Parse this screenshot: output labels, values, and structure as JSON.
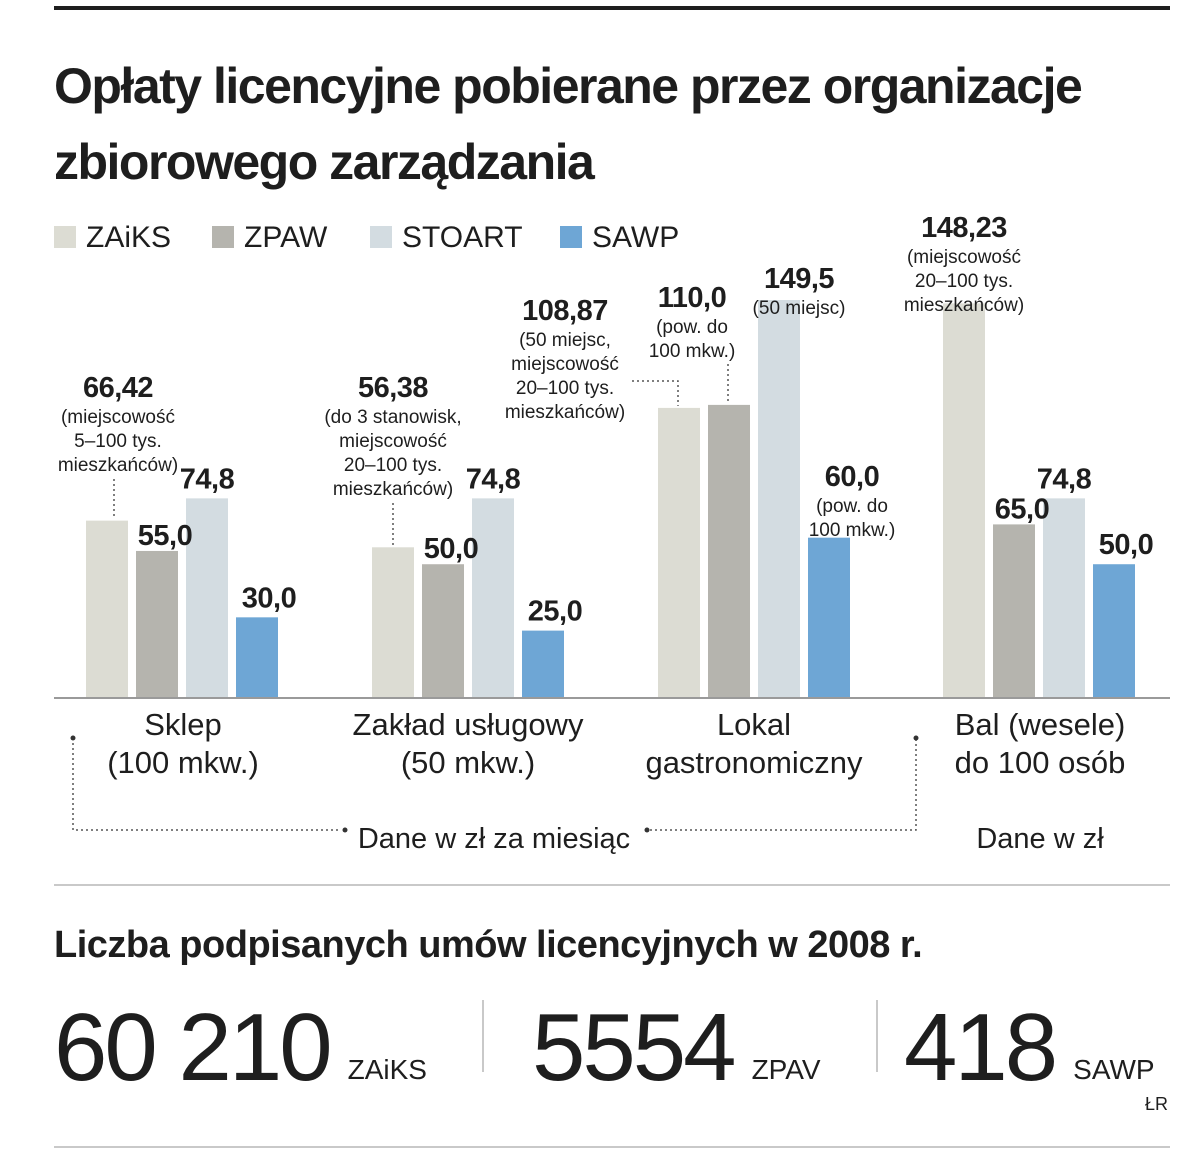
{
  "title_lines": [
    "Opłaty licencyjne pobierane przez organizacje",
    "zbiorowego zarządzania"
  ],
  "colors": {
    "ZAiKS": "#dcdcd3",
    "ZPAW": "#b5b4ae",
    "STOART": "#d3dce1",
    "SAWP": "#6ea6d5",
    "text": "#1e1e1e",
    "rule": "#c9c9c9"
  },
  "chart_data": {
    "type": "bar",
    "series_names": [
      "ZAiKS",
      "ZPAW",
      "STOART",
      "SAWP"
    ],
    "categories": [
      {
        "lines": [
          "Sklep",
          "(100 mkw.)"
        ]
      },
      {
        "lines": [
          "Zakład usługowy",
          "(50 mkw.)"
        ]
      },
      {
        "lines": [
          "Lokal",
          "gastronomiczny"
        ]
      },
      {
        "lines": [
          "Bal (wesele)",
          "do 100 osób"
        ]
      }
    ],
    "series": [
      {
        "name": "ZAiKS",
        "values": [
          66.42,
          56.38,
          108.87,
          148.23
        ]
      },
      {
        "name": "ZPAW",
        "values": [
          55.0,
          50.0,
          110.0,
          65.0
        ]
      },
      {
        "name": "STOART",
        "values": [
          74.8,
          74.8,
          149.5,
          74.8
        ]
      },
      {
        "name": "SAWP",
        "values": [
          30.0,
          25.0,
          60.0,
          50.0
        ]
      }
    ],
    "value_labels": [
      [
        "66,42",
        "55,0",
        "74,8",
        "30,0"
      ],
      [
        "56,38",
        "50,0",
        "74,8",
        "25,0"
      ],
      [
        "108,87",
        "110,0",
        "149,5",
        "60,0"
      ],
      [
        "148,23",
        "65,0",
        "74,8",
        "50,0"
      ]
    ],
    "notes": [
      {
        "cat": 0,
        "series": 0,
        "lines": [
          "(miejscowość",
          "5–100 tys.",
          "mieszkańców)"
        ]
      },
      {
        "cat": 1,
        "series": 0,
        "lines": [
          "(do 3 stanowisk,",
          "miejscowość",
          "20–100 tys.",
          "mieszkańców)"
        ]
      },
      {
        "cat": 2,
        "series": 0,
        "lines": [
          "(50 miejsc,",
          "miejscowość",
          "20–100 tys.",
          "mieszkańców)"
        ]
      },
      {
        "cat": 2,
        "series": 1,
        "lines": [
          "(pow. do",
          "100 mkw.)"
        ]
      },
      {
        "cat": 2,
        "series": 2,
        "lines": [
          "(50 miejsc)"
        ]
      },
      {
        "cat": 2,
        "series": 3,
        "lines": [
          "(pow. do",
          "100 mkw.)"
        ]
      },
      {
        "cat": 3,
        "series": 0,
        "lines": [
          "(miejscowość",
          "20–100 tys.",
          "mieszkańców)"
        ]
      }
    ],
    "unit_notes": [
      "Dane w zł za miesiąc",
      "Dane w zł"
    ],
    "ylim": [
      0,
      160
    ]
  },
  "contracts": {
    "title": "Liczba podpisanych umów licencyjnych w 2008 r.",
    "items": [
      {
        "value": "60 210",
        "org": "ZAiKS"
      },
      {
        "value": "5554",
        "org": "ZPAV"
      },
      {
        "value": "418",
        "org": "SAWP"
      }
    ]
  },
  "credit": "ŁR"
}
